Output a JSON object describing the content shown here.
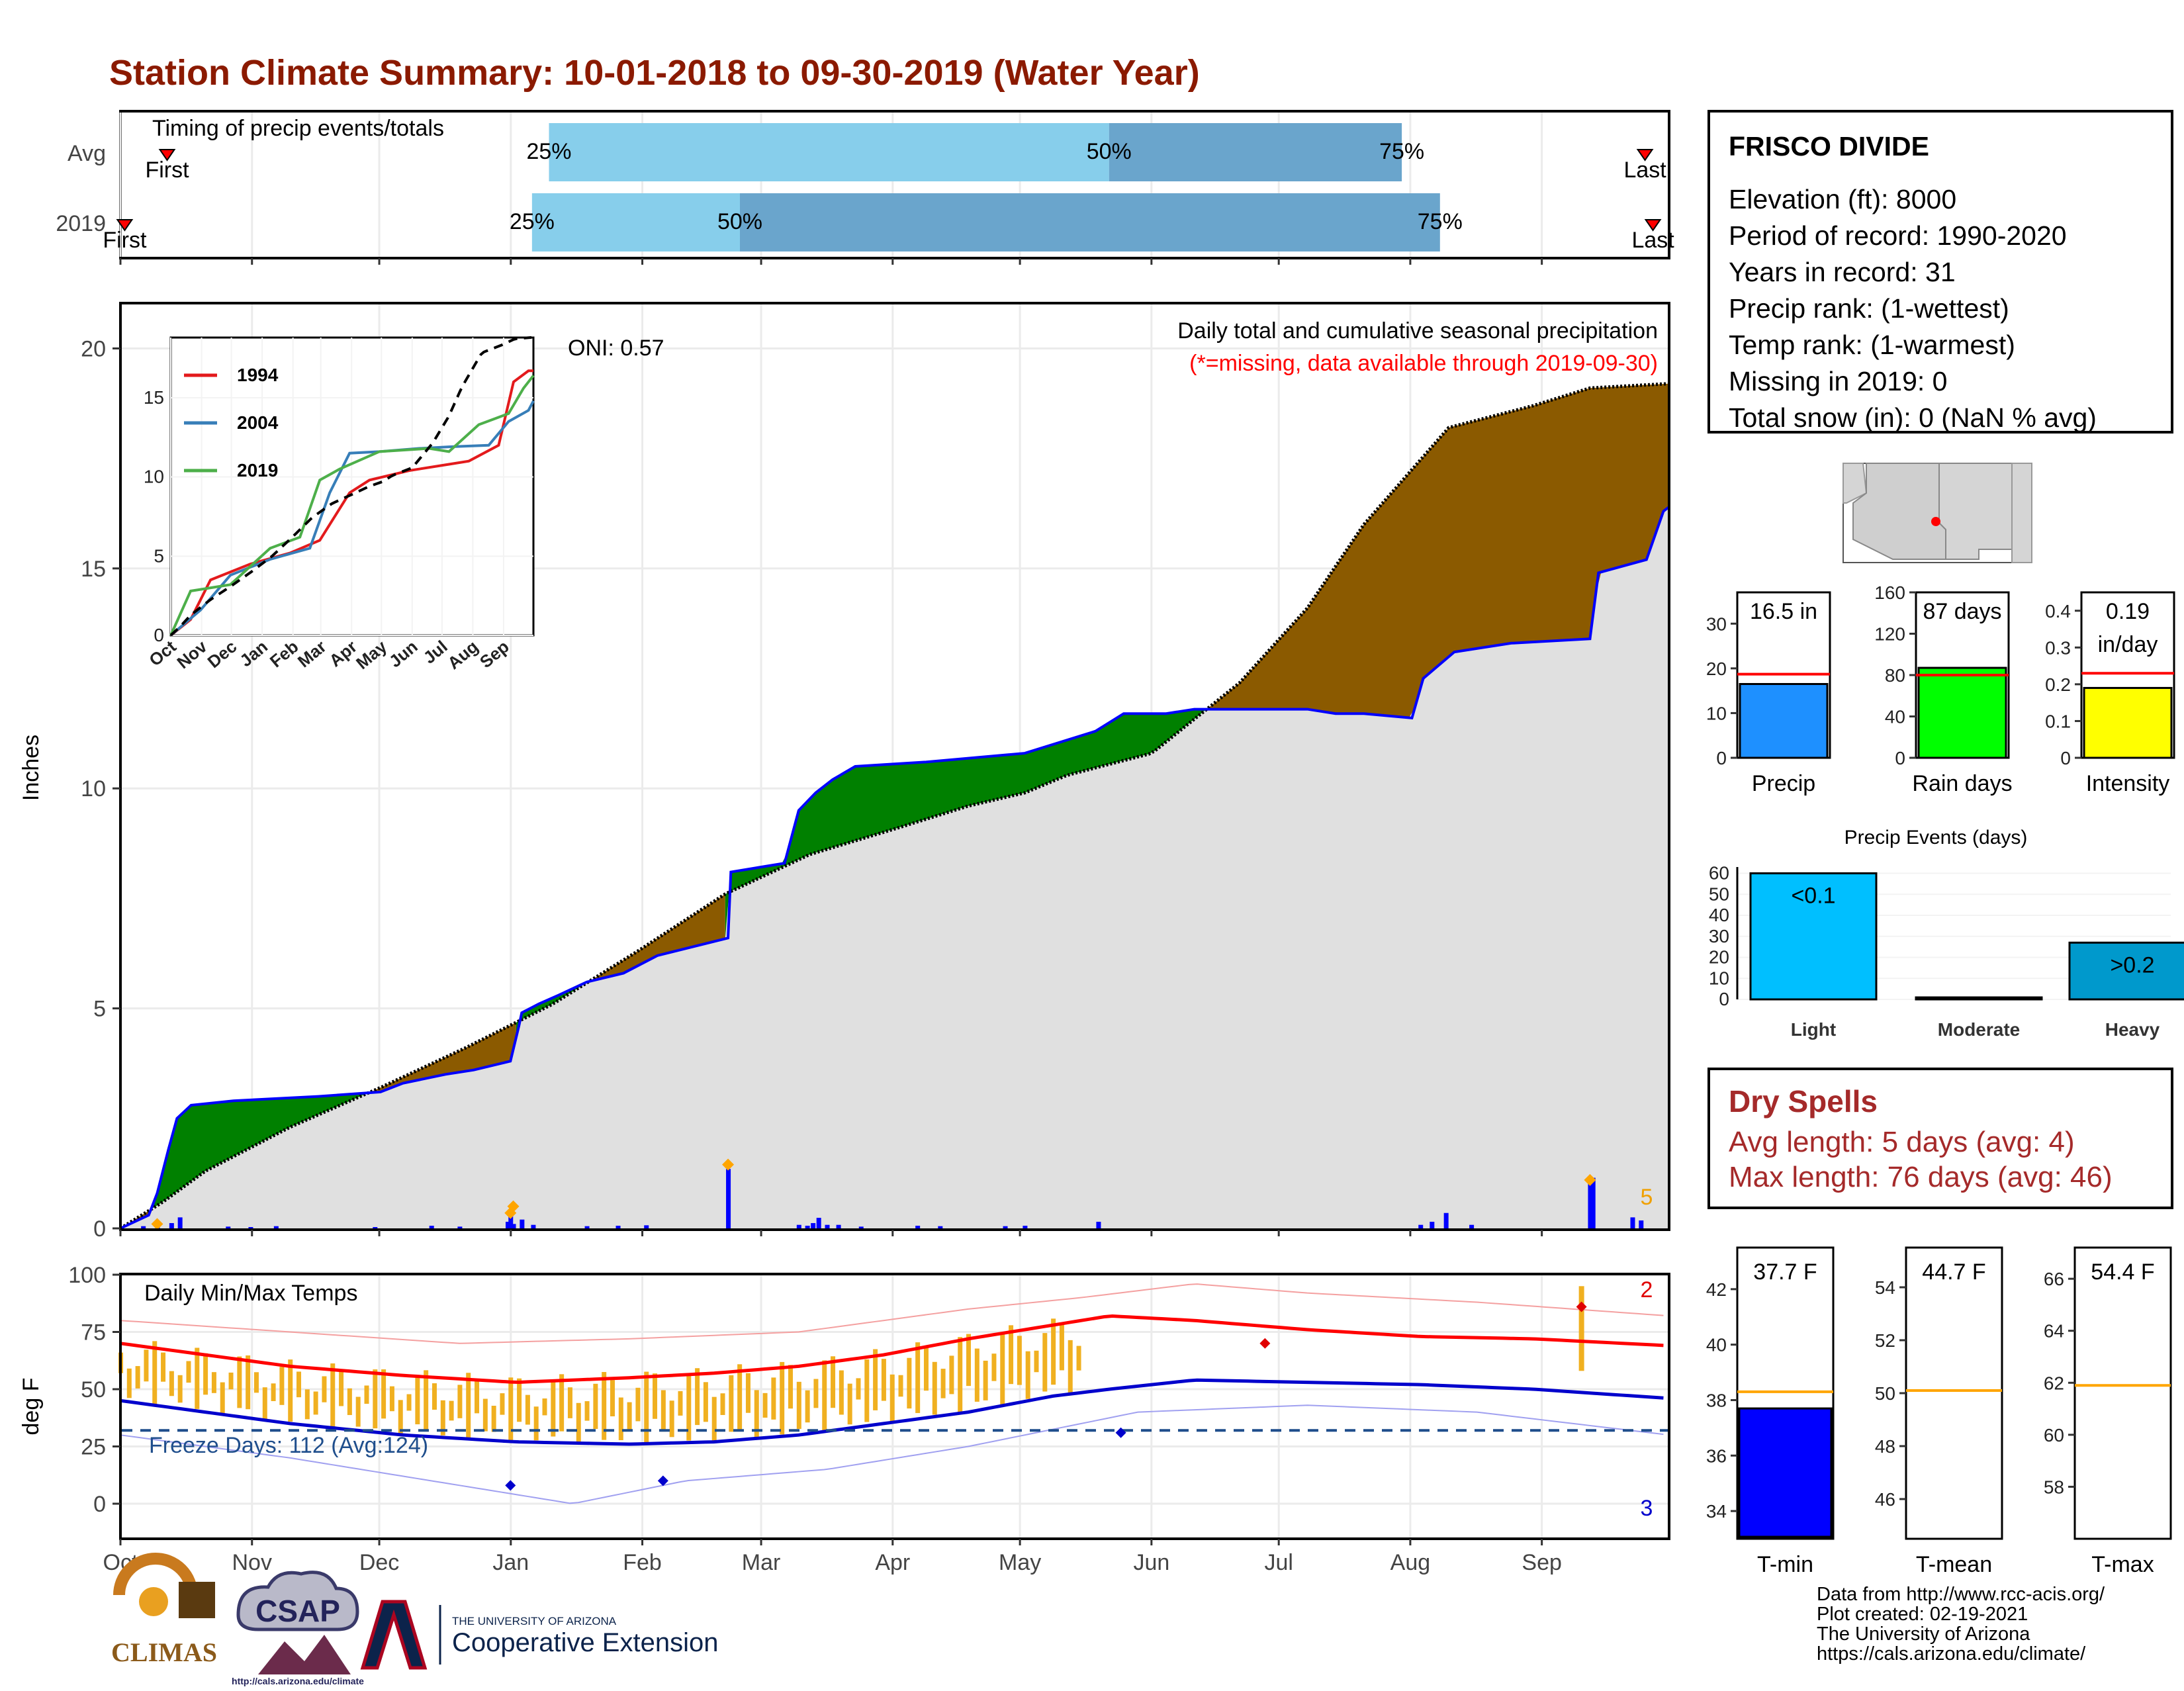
{
  "title": "Station Climate Summary: 10-01-2018 to 09-30-2019 (Water Year)",
  "timing": {
    "label": "Timing of precip events/totals",
    "rows": [
      {
        "name": "Avg",
        "first_label": "First",
        "last_label": "Last",
        "p25": "25%",
        "p50": "50%",
        "p75": "75%",
        "first": "Oct 12",
        "q25": "Jan 10",
        "q50": "May 22",
        "q75": "Jul 30",
        "last": "Sep 30"
      },
      {
        "name": "2019",
        "first_label": "First",
        "last_label": "Last",
        "p25": "25%",
        "p50": "50%",
        "p75": "75%",
        "first": "Oct 02",
        "q25": "Jan 06",
        "q50": "Feb 24",
        "q75": "Aug 08",
        "last": "Sep 30"
      }
    ]
  },
  "precip": {
    "ylabel": "Inches",
    "ymax": 21,
    "yticks": [
      0,
      5,
      10,
      15,
      20
    ],
    "months": [
      "Oct",
      "Nov",
      "Dec",
      "Jan",
      "Feb",
      "Mar",
      "Apr",
      "May",
      "Jun",
      "Jul",
      "Aug",
      "Sep"
    ],
    "oni": "ONI: 0.57",
    "caption1": "Daily total and cumulative seasonal precipitation",
    "caption2": "(*=missing, data available through 2019-09-30)",
    "count_label": "5",
    "avg_cum": [
      [
        0,
        0
      ],
      [
        15,
        0.6
      ],
      [
        30,
        1.3
      ],
      [
        60,
        2.3
      ],
      [
        92,
        3.2
      ],
      [
        122,
        4.1
      ],
      [
        153,
        5.1
      ],
      [
        183,
        6.3
      ],
      [
        214,
        7.6
      ],
      [
        244,
        8.5
      ],
      [
        275,
        9.1
      ],
      [
        300,
        9.6
      ],
      [
        320,
        9.9
      ],
      [
        335,
        10.3
      ],
      [
        365,
        10.8
      ],
      [
        396,
        12.4
      ],
      [
        420,
        14.1
      ],
      [
        440,
        16.0
      ],
      [
        455,
        17.1
      ],
      [
        470,
        18.2
      ],
      [
        500,
        18.7
      ],
      [
        520,
        19.1
      ],
      [
        548,
        19.2
      ]
    ],
    "obs_cum": [
      [
        0,
        0
      ],
      [
        10,
        0.3
      ],
      [
        13,
        0.8
      ],
      [
        17,
        1.8
      ],
      [
        20,
        2.5
      ],
      [
        25,
        2.8
      ],
      [
        40,
        2.9
      ],
      [
        70,
        3.0
      ],
      [
        92,
        3.1
      ],
      [
        100,
        3.3
      ],
      [
        115,
        3.5
      ],
      [
        125,
        3.6
      ],
      [
        138,
        3.8
      ],
      [
        141,
        4.6
      ],
      [
        142,
        4.9
      ],
      [
        148,
        5.1
      ],
      [
        155,
        5.3
      ],
      [
        165,
        5.6
      ],
      [
        178,
        5.8
      ],
      [
        190,
        6.2
      ],
      [
        215,
        6.6
      ],
      [
        216,
        8.1
      ],
      [
        235,
        8.3
      ],
      [
        240,
        9.5
      ],
      [
        246,
        9.9
      ],
      [
        252,
        10.2
      ],
      [
        260,
        10.5
      ],
      [
        285,
        10.6
      ],
      [
        320,
        10.8
      ],
      [
        345,
        11.3
      ],
      [
        355,
        11.7
      ],
      [
        370,
        11.7
      ],
      [
        380,
        11.8
      ],
      [
        420,
        11.8
      ],
      [
        430,
        11.7
      ],
      [
        440,
        11.7
      ],
      [
        457,
        11.6
      ],
      [
        461,
        12.5
      ],
      [
        472,
        13.1
      ],
      [
        492,
        13.3
      ],
      [
        520,
        13.4
      ],
      [
        523,
        14.9
      ],
      [
        540,
        15.2
      ],
      [
        546,
        16.3
      ],
      [
        548,
        16.4
      ]
    ],
    "daily_events": [
      [
        8,
        0.05
      ],
      [
        13,
        0.08
      ],
      [
        18,
        0.12
      ],
      [
        21,
        0.25
      ],
      [
        38,
        0.04
      ],
      [
        46,
        0.03
      ],
      [
        55,
        0.05
      ],
      [
        90,
        0.03
      ],
      [
        110,
        0.06
      ],
      [
        120,
        0.04
      ],
      [
        137,
        0.15
      ],
      [
        138,
        0.35
      ],
      [
        139,
        0.1
      ],
      [
        142,
        0.2
      ],
      [
        146,
        0.08
      ],
      [
        165,
        0.05
      ],
      [
        176,
        0.06
      ],
      [
        186,
        0.07
      ],
      [
        215,
        1.35
      ],
      [
        240,
        0.08
      ],
      [
        243,
        0.06
      ],
      [
        245,
        0.12
      ],
      [
        247,
        0.24
      ],
      [
        250,
        0.08
      ],
      [
        254,
        0.08
      ],
      [
        262,
        0.04
      ],
      [
        282,
        0.06
      ],
      [
        290,
        0.05
      ],
      [
        313,
        0.05
      ],
      [
        320,
        0.06
      ],
      [
        346,
        0.15
      ],
      [
        460,
        0.08
      ],
      [
        464,
        0.15
      ],
      [
        469,
        0.35
      ],
      [
        478,
        0.08
      ],
      [
        520,
        1.1
      ],
      [
        521,
        1.15
      ],
      [
        535,
        0.25
      ],
      [
        538,
        0.18
      ]
    ],
    "markers": [
      [
        13,
        0.1
      ],
      [
        138,
        0.35
      ],
      [
        139,
        0.5
      ],
      [
        215,
        1.45
      ],
      [
        520,
        1.1
      ]
    ],
    "inset": {
      "months": [
        "Oct",
        "Nov",
        "Dec",
        "Jan",
        "Feb",
        "Mar",
        "Apr",
        "May",
        "Jun",
        "Jul",
        "Aug",
        "Sep"
      ],
      "yticks": [
        0,
        5,
        10,
        15
      ],
      "ymax": 18.8,
      "series": [
        {
          "name": "1994",
          "color": "#e31a1c",
          "points": [
            [
              0,
              0
            ],
            [
              20,
              1.0
            ],
            [
              40,
              3.5
            ],
            [
              80,
              4.5
            ],
            [
              120,
              5.2
            ],
            [
              150,
              6.0
            ],
            [
              180,
              9.0
            ],
            [
              200,
              9.8
            ],
            [
              240,
              10.4
            ],
            [
              280,
              10.8
            ],
            [
              300,
              11.0
            ],
            [
              330,
              12.0
            ],
            [
              345,
              16.0
            ],
            [
              360,
              16.7
            ],
            [
              365,
              16.7
            ]
          ]
        },
        {
          "name": "2004",
          "color": "#377eb8",
          "points": [
            [
              0,
              0
            ],
            [
              30,
              1.6
            ],
            [
              60,
              3.8
            ],
            [
              100,
              4.8
            ],
            [
              140,
              5.5
            ],
            [
              160,
              9.0
            ],
            [
              180,
              11.5
            ],
            [
              210,
              11.6
            ],
            [
              250,
              11.8
            ],
            [
              280,
              11.9
            ],
            [
              320,
              12.0
            ],
            [
              340,
              13.5
            ],
            [
              360,
              14.2
            ],
            [
              365,
              14.8
            ]
          ]
        },
        {
          "name": "2019",
          "color": "#4daf4a",
          "points": [
            [
              0,
              0
            ],
            [
              20,
              2.8
            ],
            [
              60,
              3.2
            ],
            [
              100,
              5.5
            ],
            [
              130,
              6.2
            ],
            [
              150,
              9.8
            ],
            [
              170,
              10.5
            ],
            [
              210,
              11.6
            ],
            [
              260,
              11.8
            ],
            [
              280,
              11.6
            ],
            [
              310,
              13.3
            ],
            [
              340,
              14.0
            ],
            [
              355,
              15.6
            ],
            [
              365,
              16.4
            ]
          ]
        }
      ]
    }
  },
  "temps": {
    "ylabel": "deg F",
    "yticks": [
      0,
      25,
      50,
      75,
      100
    ],
    "label": "Daily Min/Max Temps",
    "freeze": "Freeze Days: 112 (Avg:124)",
    "count_max": "2",
    "count_min": "3",
    "freeze_line": 32,
    "avg_max": [
      [
        0,
        70
      ],
      [
        30,
        65
      ],
      [
        60,
        60
      ],
      [
        100,
        56
      ],
      [
        140,
        53
      ],
      [
        180,
        55
      ],
      [
        210,
        57
      ],
      [
        240,
        60
      ],
      [
        270,
        65
      ],
      [
        300,
        72
      ],
      [
        330,
        78
      ],
      [
        350,
        82
      ],
      [
        380,
        80
      ],
      [
        420,
        76
      ],
      [
        460,
        73
      ],
      [
        500,
        72
      ],
      [
        548,
        69
      ]
    ],
    "avg_min": [
      [
        0,
        45
      ],
      [
        30,
        40
      ],
      [
        60,
        35
      ],
      [
        100,
        30
      ],
      [
        140,
        27
      ],
      [
        180,
        26
      ],
      [
        210,
        27
      ],
      [
        240,
        30
      ],
      [
        270,
        35
      ],
      [
        300,
        40
      ],
      [
        330,
        47
      ],
      [
        350,
        50
      ],
      [
        380,
        54
      ],
      [
        420,
        53
      ],
      [
        460,
        52
      ],
      [
        500,
        50
      ],
      [
        548,
        46
      ]
    ],
    "rec_max": [
      [
        0,
        80
      ],
      [
        60,
        75
      ],
      [
        120,
        70
      ],
      [
        180,
        72
      ],
      [
        240,
        75
      ],
      [
        300,
        85
      ],
      [
        340,
        90
      ],
      [
        380,
        96
      ],
      [
        420,
        92
      ],
      [
        480,
        88
      ],
      [
        548,
        82
      ]
    ],
    "rec_min": [
      [
        0,
        30
      ],
      [
        60,
        20
      ],
      [
        120,
        8
      ],
      [
        160,
        0
      ],
      [
        200,
        10
      ],
      [
        250,
        15
      ],
      [
        300,
        25
      ],
      [
        360,
        40
      ],
      [
        420,
        43
      ],
      [
        480,
        40
      ],
      [
        548,
        30
      ]
    ]
  },
  "station": {
    "name": "FRISCO DIVIDE",
    "lines": [
      "Elevation (ft): 8000",
      "Period of record: 1990-2020",
      "Years in record: 31",
      "Precip rank:  (1-wettest)",
      "Temp rank:  (1-warmest)",
      "Missing in 2019: 0",
      "Total snow (in): 0 (NaN % avg)"
    ]
  },
  "bars_summary": [
    {
      "title": "Precip",
      "value_label": "16.5 in",
      "value": 16.5,
      "avg": 18.7,
      "ymax": 37,
      "yticks": [
        0,
        10,
        20,
        30
      ],
      "color": "#1e90ff"
    },
    {
      "title": "Rain days",
      "value_label": "87 days",
      "value": 87,
      "avg": 80,
      "ymax": 160,
      "yticks": [
        0,
        40,
        80,
        120,
        160
      ],
      "color": "#00ff00"
    },
    {
      "title": "Intensity",
      "value_label": "0.19",
      "value_label2": "in/day",
      "value": 0.19,
      "avg": 0.23,
      "ymax": 0.45,
      "yticks": [
        0.0,
        0.1,
        0.2,
        0.3,
        0.4
      ],
      "color": "#ffff00"
    }
  ],
  "events": {
    "title": "Precip Events (days)",
    "categories": [
      "Light",
      "Moderate",
      "Heavy"
    ],
    "values": [
      60,
      0,
      27
    ],
    "labels": [
      "<0.1",
      "",
      ">0.2"
    ],
    "colors": [
      "#00bfff",
      "#00bfff",
      "#0099cc"
    ],
    "yticks": [
      0,
      10,
      20,
      30,
      40,
      50,
      60
    ]
  },
  "dry_spells": {
    "title": "Dry Spells",
    "avg": "Avg length: 5 days (avg: 4)",
    "max": "Max length: 76 days (avg: 46)"
  },
  "temp_summary": [
    {
      "title": "T-min",
      "value_label": "37.7 F",
      "value": 37.7,
      "avg": 38.3,
      "ymin": 33,
      "ymax": 43.5,
      "yticks": [
        34,
        36,
        38,
        40,
        42
      ],
      "color": "#0000ff"
    },
    {
      "title": "T-mean",
      "value_label": "44.7 F",
      "value": 44.7,
      "avg": 50.1,
      "ymin": 44.5,
      "ymax": 55.5,
      "yticks": [
        46,
        48,
        50,
        52,
        54
      ],
      "color": "#ffffff"
    },
    {
      "title": "T-max",
      "value_label": "54.4 F",
      "value": 54.4,
      "avg": 61.9,
      "ymin": 56,
      "ymax": 67.2,
      "yticks": [
        58,
        60,
        62,
        64,
        66
      ],
      "color": "#ffffff"
    }
  ],
  "logos": {
    "climas": "CLIMAS",
    "csap": "CSAP",
    "csap_url": "http://cals.arizona.edu/climate",
    "ua_small": "THE UNIVERSITY OF ARIZONA",
    "ua_big": "Cooperative Extension"
  },
  "footer": [
    "Data from http://www.rcc-acis.org/",
    "Plot created: 02-19-2021",
    "The University of Arizona",
    "https://cals.arizona.edu/climate/"
  ],
  "colors": {
    "title": "#8b1a00",
    "wetter": "#008000",
    "drier": "#8b5a00",
    "cum_fill": "#e0e0e0",
    "obs_line": "#0000ff",
    "tmax": "#ff0000",
    "tmin": "#0000cc",
    "range": "#f0b020"
  }
}
